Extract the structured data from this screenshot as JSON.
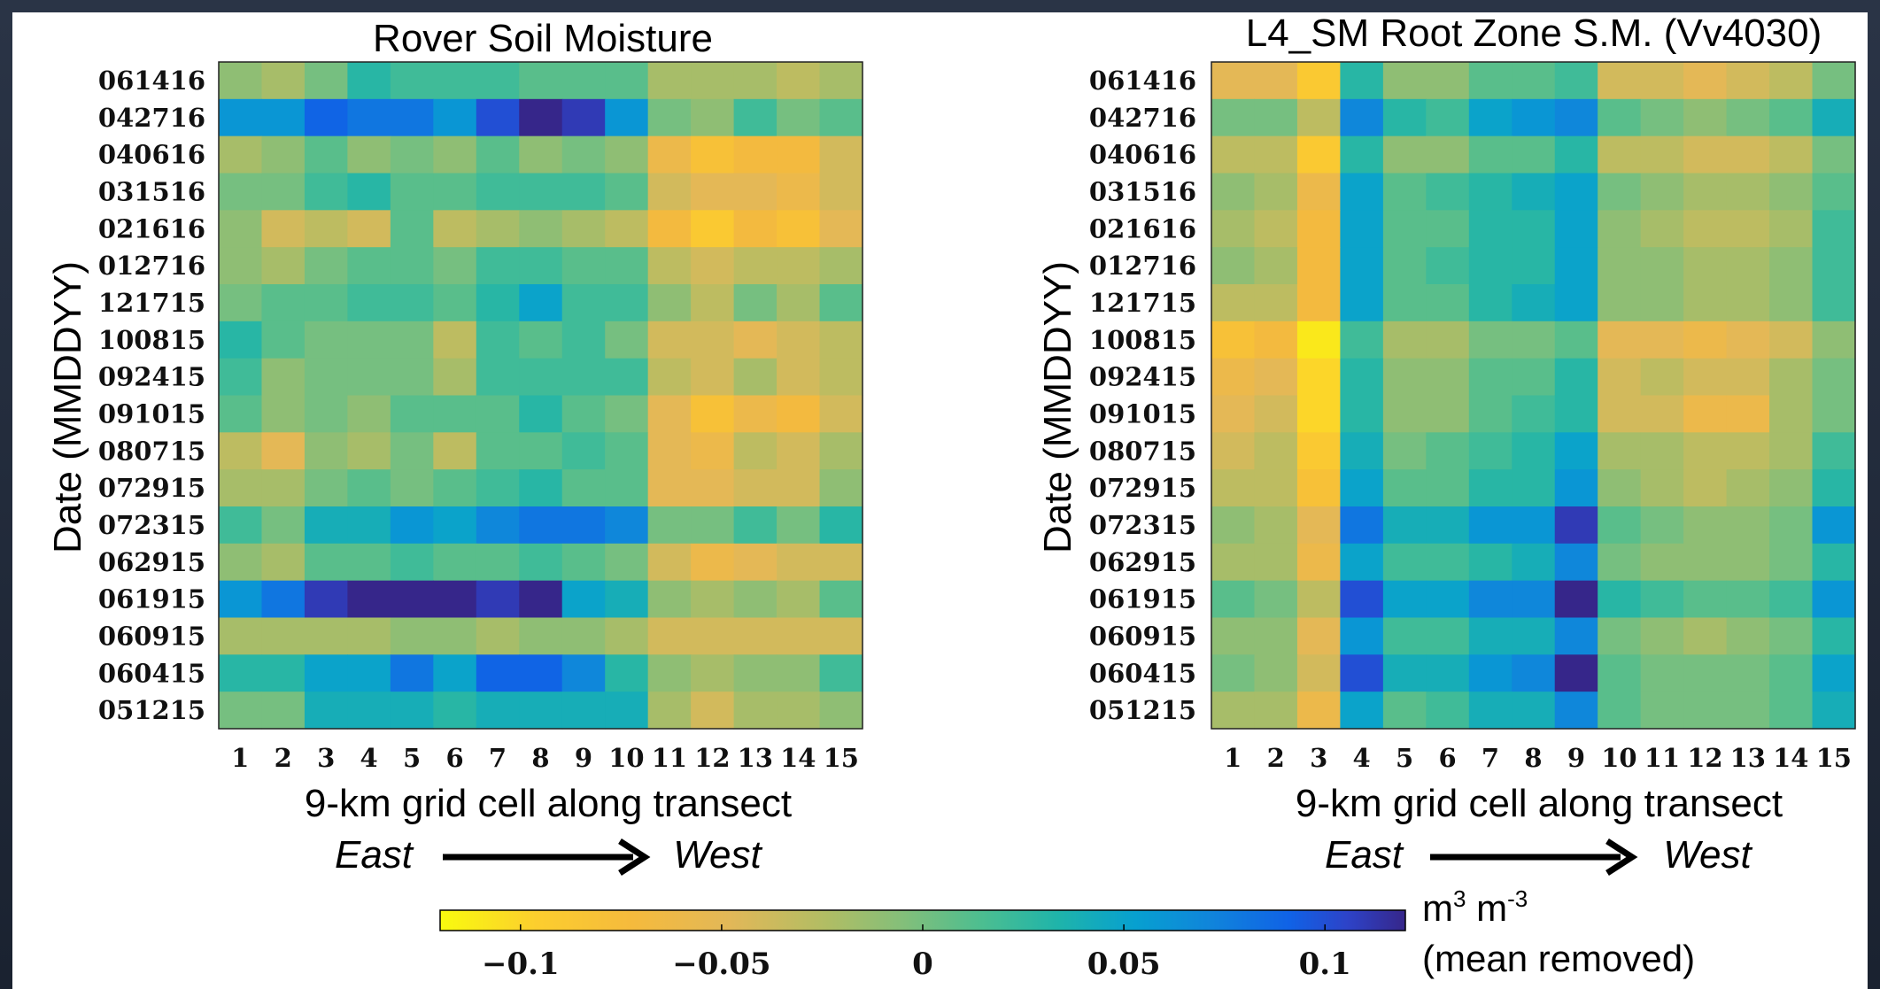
{
  "chart_data": [
    {
      "type": "heatmap",
      "title": "Rover Soil Moisture",
      "xlabel": "9-km grid cell along transect",
      "ylabel": "Date (MMDDYY)",
      "direction": {
        "from": "East",
        "to": "West"
      },
      "x": [
        "1",
        "2",
        "3",
        "4",
        "5",
        "6",
        "7",
        "8",
        "9",
        "10",
        "11",
        "12",
        "13",
        "14",
        "15"
      ],
      "y": [
        "061416",
        "042716",
        "040616",
        "031516",
        "021616",
        "012716",
        "121715",
        "100815",
        "092415",
        "091015",
        "080715",
        "072915",
        "072315",
        "062915",
        "061915",
        "060915",
        "060415",
        "051215"
      ],
      "values": [
        [
          -0.01,
          -0.02,
          0.0,
          0.03,
          0.02,
          0.02,
          0.02,
          0.01,
          0.01,
          0.01,
          -0.02,
          -0.02,
          -0.02,
          -0.03,
          -0.02
        ],
        [
          0.06,
          0.06,
          0.09,
          0.08,
          0.08,
          0.06,
          0.1,
          0.12,
          0.11,
          0.06,
          0.0,
          -0.01,
          0.02,
          0.0,
          0.01
        ],
        [
          -0.02,
          -0.01,
          0.01,
          -0.01,
          0.0,
          -0.01,
          0.01,
          -0.01,
          0.0,
          -0.01,
          -0.06,
          -0.08,
          -0.07,
          -0.07,
          -0.04
        ],
        [
          0.0,
          0.0,
          0.02,
          0.03,
          0.01,
          0.01,
          0.02,
          0.02,
          0.02,
          0.01,
          -0.04,
          -0.05,
          -0.05,
          -0.06,
          -0.04
        ],
        [
          -0.01,
          -0.04,
          -0.03,
          -0.04,
          0.01,
          -0.03,
          -0.02,
          -0.01,
          -0.02,
          -0.03,
          -0.07,
          -0.09,
          -0.07,
          -0.08,
          -0.05
        ],
        [
          -0.01,
          -0.02,
          0.0,
          0.01,
          0.01,
          0.0,
          0.02,
          0.02,
          0.01,
          0.01,
          -0.03,
          -0.04,
          -0.03,
          -0.03,
          -0.02
        ],
        [
          0.0,
          0.01,
          0.01,
          0.02,
          0.02,
          0.01,
          0.03,
          0.05,
          0.02,
          0.02,
          -0.01,
          -0.03,
          0.0,
          -0.02,
          0.01
        ],
        [
          0.03,
          0.01,
          0.0,
          0.0,
          0.0,
          -0.03,
          0.02,
          0.01,
          0.02,
          0.0,
          -0.04,
          -0.04,
          -0.05,
          -0.04,
          -0.03
        ],
        [
          0.02,
          -0.01,
          0.0,
          0.0,
          0.0,
          -0.02,
          0.02,
          0.02,
          0.02,
          0.02,
          -0.03,
          -0.04,
          -0.02,
          -0.04,
          -0.03
        ],
        [
          0.01,
          -0.01,
          0.0,
          -0.01,
          0.01,
          0.01,
          0.01,
          0.03,
          0.01,
          0.0,
          -0.05,
          -0.08,
          -0.06,
          -0.07,
          -0.04
        ],
        [
          -0.03,
          -0.05,
          -0.01,
          -0.02,
          0.0,
          -0.03,
          0.01,
          0.01,
          0.02,
          0.01,
          -0.05,
          -0.06,
          -0.03,
          -0.04,
          -0.02
        ],
        [
          -0.02,
          -0.02,
          0.0,
          0.01,
          0.0,
          0.01,
          0.02,
          0.03,
          0.01,
          0.01,
          -0.05,
          -0.05,
          -0.04,
          -0.04,
          -0.01
        ],
        [
          0.02,
          0.0,
          0.04,
          0.04,
          0.06,
          0.05,
          0.07,
          0.08,
          0.08,
          0.07,
          0.0,
          0.0,
          0.02,
          0.0,
          0.03
        ],
        [
          -0.01,
          -0.02,
          0.01,
          0.01,
          0.02,
          0.01,
          0.01,
          0.02,
          0.01,
          0.0,
          -0.04,
          -0.06,
          -0.05,
          -0.04,
          -0.04
        ],
        [
          0.06,
          0.08,
          0.11,
          0.12,
          0.12,
          0.12,
          0.11,
          0.12,
          0.05,
          0.04,
          -0.01,
          -0.02,
          -0.01,
          -0.02,
          0.01
        ],
        [
          -0.02,
          -0.02,
          -0.02,
          -0.02,
          -0.01,
          -0.01,
          -0.02,
          -0.01,
          -0.01,
          -0.02,
          -0.04,
          -0.04,
          -0.04,
          -0.04,
          -0.04
        ],
        [
          0.03,
          0.03,
          0.05,
          0.05,
          0.08,
          0.05,
          0.09,
          0.09,
          0.07,
          0.03,
          -0.01,
          -0.02,
          -0.01,
          -0.01,
          0.02
        ],
        [
          0.0,
          0.0,
          0.04,
          0.04,
          0.04,
          0.03,
          0.04,
          0.04,
          0.04,
          0.04,
          -0.02,
          -0.04,
          -0.02,
          -0.02,
          -0.01
        ]
      ]
    },
    {
      "type": "heatmap",
      "title": "L4_SM Root Zone S.M. (Vv4030)",
      "xlabel": "9-km grid cell along transect",
      "ylabel": "Date (MMDDYY)",
      "direction": {
        "from": "East",
        "to": "West"
      },
      "x": [
        "1",
        "2",
        "3",
        "4",
        "5",
        "6",
        "7",
        "8",
        "9",
        "10",
        "11",
        "12",
        "13",
        "14",
        "15"
      ],
      "y": [
        "061416",
        "042716",
        "040616",
        "031516",
        "021616",
        "012716",
        "121715",
        "100815",
        "092415",
        "091015",
        "080715",
        "072915",
        "072315",
        "062915",
        "061915",
        "060915",
        "060415",
        "051215"
      ],
      "values": [
        [
          -0.05,
          -0.05,
          -0.09,
          0.03,
          -0.01,
          -0.01,
          0.01,
          0.01,
          0.02,
          -0.04,
          -0.04,
          -0.05,
          -0.04,
          -0.03,
          0.0
        ],
        [
          0.0,
          0.0,
          -0.03,
          0.07,
          0.03,
          0.02,
          0.05,
          0.06,
          0.07,
          0.01,
          0.0,
          -0.01,
          0.0,
          0.01,
          0.04
        ],
        [
          -0.03,
          -0.03,
          -0.09,
          0.03,
          -0.01,
          -0.01,
          0.01,
          0.01,
          0.03,
          -0.03,
          -0.03,
          -0.04,
          -0.04,
          -0.03,
          0.0
        ],
        [
          -0.01,
          -0.02,
          -0.06,
          0.05,
          0.01,
          0.02,
          0.03,
          0.04,
          0.05,
          0.0,
          -0.01,
          -0.02,
          -0.02,
          -0.01,
          0.01
        ],
        [
          -0.02,
          -0.03,
          -0.07,
          0.05,
          0.01,
          0.01,
          0.03,
          0.03,
          0.05,
          -0.01,
          -0.02,
          -0.03,
          -0.03,
          -0.02,
          0.02
        ],
        [
          -0.01,
          -0.02,
          -0.07,
          0.05,
          0.01,
          0.02,
          0.03,
          0.03,
          0.05,
          -0.01,
          -0.01,
          -0.02,
          -0.02,
          -0.01,
          0.02
        ],
        [
          -0.03,
          -0.03,
          -0.07,
          0.05,
          0.01,
          0.01,
          0.03,
          0.04,
          0.05,
          -0.01,
          -0.01,
          -0.02,
          -0.02,
          -0.01,
          0.02
        ],
        [
          -0.08,
          -0.07,
          -0.11,
          0.02,
          -0.02,
          -0.02,
          0.0,
          0.0,
          0.01,
          -0.05,
          -0.05,
          -0.06,
          -0.05,
          -0.04,
          -0.01
        ],
        [
          -0.06,
          -0.05,
          -0.1,
          0.03,
          -0.01,
          -0.01,
          0.01,
          0.01,
          0.03,
          -0.04,
          -0.03,
          -0.04,
          -0.04,
          -0.02,
          0.0
        ],
        [
          -0.05,
          -0.04,
          -0.1,
          0.03,
          -0.01,
          -0.01,
          0.01,
          0.02,
          0.03,
          -0.04,
          -0.04,
          -0.06,
          -0.06,
          -0.02,
          0.0
        ],
        [
          -0.04,
          -0.03,
          -0.09,
          0.04,
          0.0,
          0.01,
          0.02,
          0.03,
          0.05,
          -0.02,
          -0.02,
          -0.03,
          -0.03,
          -0.02,
          0.02
        ],
        [
          -0.03,
          -0.03,
          -0.08,
          0.05,
          0.01,
          0.01,
          0.03,
          0.03,
          0.06,
          -0.01,
          -0.02,
          -0.03,
          -0.02,
          -0.01,
          0.03
        ],
        [
          -0.01,
          -0.02,
          -0.05,
          0.08,
          0.04,
          0.04,
          0.06,
          0.06,
          0.11,
          0.01,
          0.0,
          -0.01,
          -0.01,
          0.0,
          0.06
        ],
        [
          -0.02,
          -0.02,
          -0.06,
          0.05,
          0.02,
          0.02,
          0.03,
          0.04,
          0.07,
          0.0,
          -0.01,
          -0.01,
          -0.01,
          0.0,
          0.03
        ],
        [
          0.01,
          0.0,
          -0.03,
          0.1,
          0.05,
          0.05,
          0.07,
          0.07,
          0.13,
          0.03,
          0.02,
          0.01,
          0.01,
          0.02,
          0.06
        ],
        [
          -0.01,
          -0.01,
          -0.05,
          0.06,
          0.02,
          0.02,
          0.04,
          0.04,
          0.07,
          0.0,
          -0.01,
          -0.02,
          -0.01,
          0.0,
          0.03
        ],
        [
          0.0,
          -0.01,
          -0.04,
          0.1,
          0.04,
          0.04,
          0.06,
          0.07,
          0.12,
          0.01,
          0.0,
          0.0,
          0.0,
          0.01,
          0.05
        ],
        [
          -0.02,
          -0.02,
          -0.06,
          0.05,
          0.01,
          0.02,
          0.04,
          0.04,
          0.07,
          0.01,
          0.0,
          0.0,
          0.0,
          0.01,
          0.04
        ]
      ]
    }
  ],
  "colorbar": {
    "colormap": "parula reversed",
    "range": [
      -0.12,
      0.12
    ],
    "ticks": [
      -0.1,
      -0.05,
      0,
      0.05,
      0.1
    ],
    "tick_labels": [
      "−0.1",
      "−0.05",
      "0",
      "0.05",
      "0.1"
    ],
    "units_base": "m",
    "units_exp1": "3",
    "units_mid": " m",
    "units_exp2": "-3",
    "units_note": "(mean removed)"
  }
}
